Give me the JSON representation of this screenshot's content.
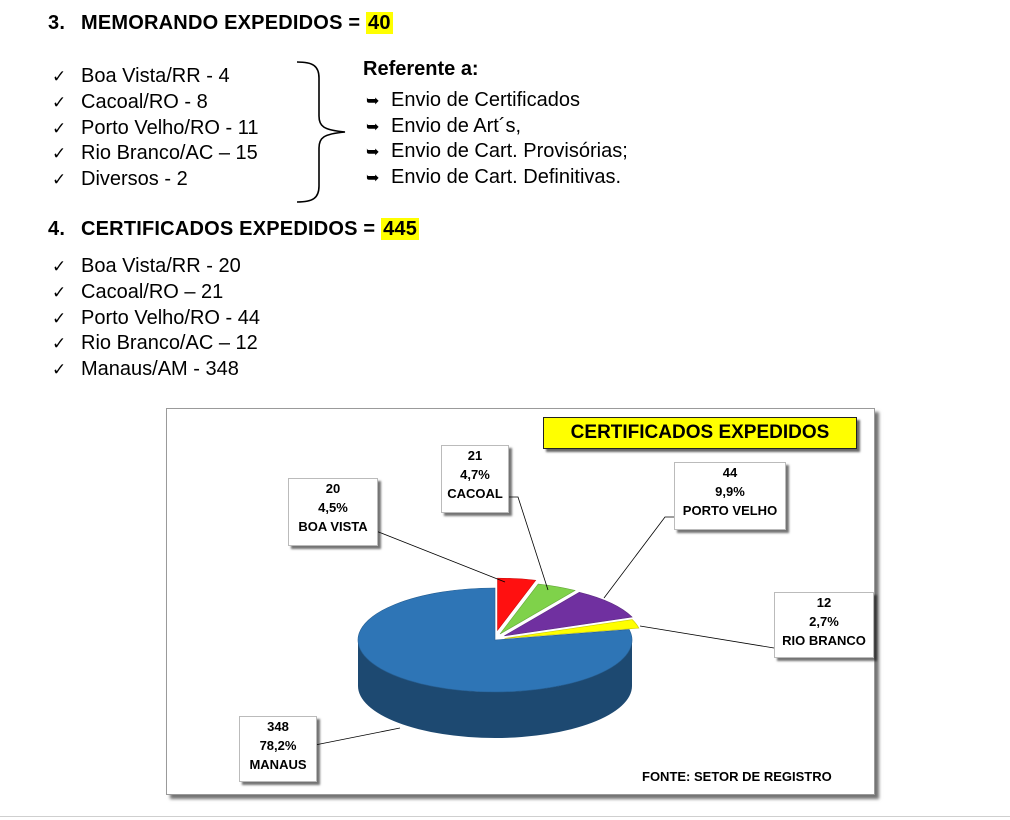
{
  "section3": {
    "number": "3.",
    "title": "MEMORANDO EXPEDIDOS = ",
    "total": "40",
    "items": [
      "Boa Vista/RR - 4",
      "Cacoal/RO - 8",
      "Porto Velho/RO - 11",
      "Rio Branco/AC – 15",
      "Diversos - 2"
    ],
    "reference_title": "Referente a:",
    "references": [
      "Envio de Certificados",
      "Envio de Art´s,",
      "Envio de Cart. Provisórias;",
      "Envio de Cart. Definitivas."
    ]
  },
  "section4": {
    "number": "4.",
    "title": "CERTIFICADOS EXPEDIDOS = ",
    "total": "445",
    "items": [
      "Boa Vista/RR - 20",
      "Cacoal/RO – 21",
      "Porto Velho/RO - 44",
      "Rio Branco/AC – 12",
      "Manaus/AM - 348"
    ]
  },
  "icons": {
    "list_marker": "check-icon",
    "reference_marker": "hooked-arrow-icon"
  },
  "colors": {
    "highlight": "#ffff00"
  },
  "chart_data": {
    "type": "pie",
    "title": "CERTIFICADOS EXPEDIDOS",
    "source": "FONTE: SETOR DE REGISTRO",
    "slices": [
      {
        "name": "BOA VISTA",
        "value": 20,
        "percent": "4,5%",
        "color": "#ff1010"
      },
      {
        "name": "CACOAL",
        "value": 21,
        "percent": "4,7%",
        "color": "#7fd24a"
      },
      {
        "name": "PORTO VELHO",
        "value": 44,
        "percent": "9,9%",
        "color": "#7030a0"
      },
      {
        "name": "RIO BRANCO",
        "value": 12,
        "percent": "2,7%",
        "color": "#ffff00"
      },
      {
        "name": "MANAUS",
        "value": 348,
        "percent": "78,2%",
        "color": "#2e75b6"
      }
    ],
    "value_labels": [
      "20",
      "21",
      "44",
      "12",
      "348"
    ]
  }
}
